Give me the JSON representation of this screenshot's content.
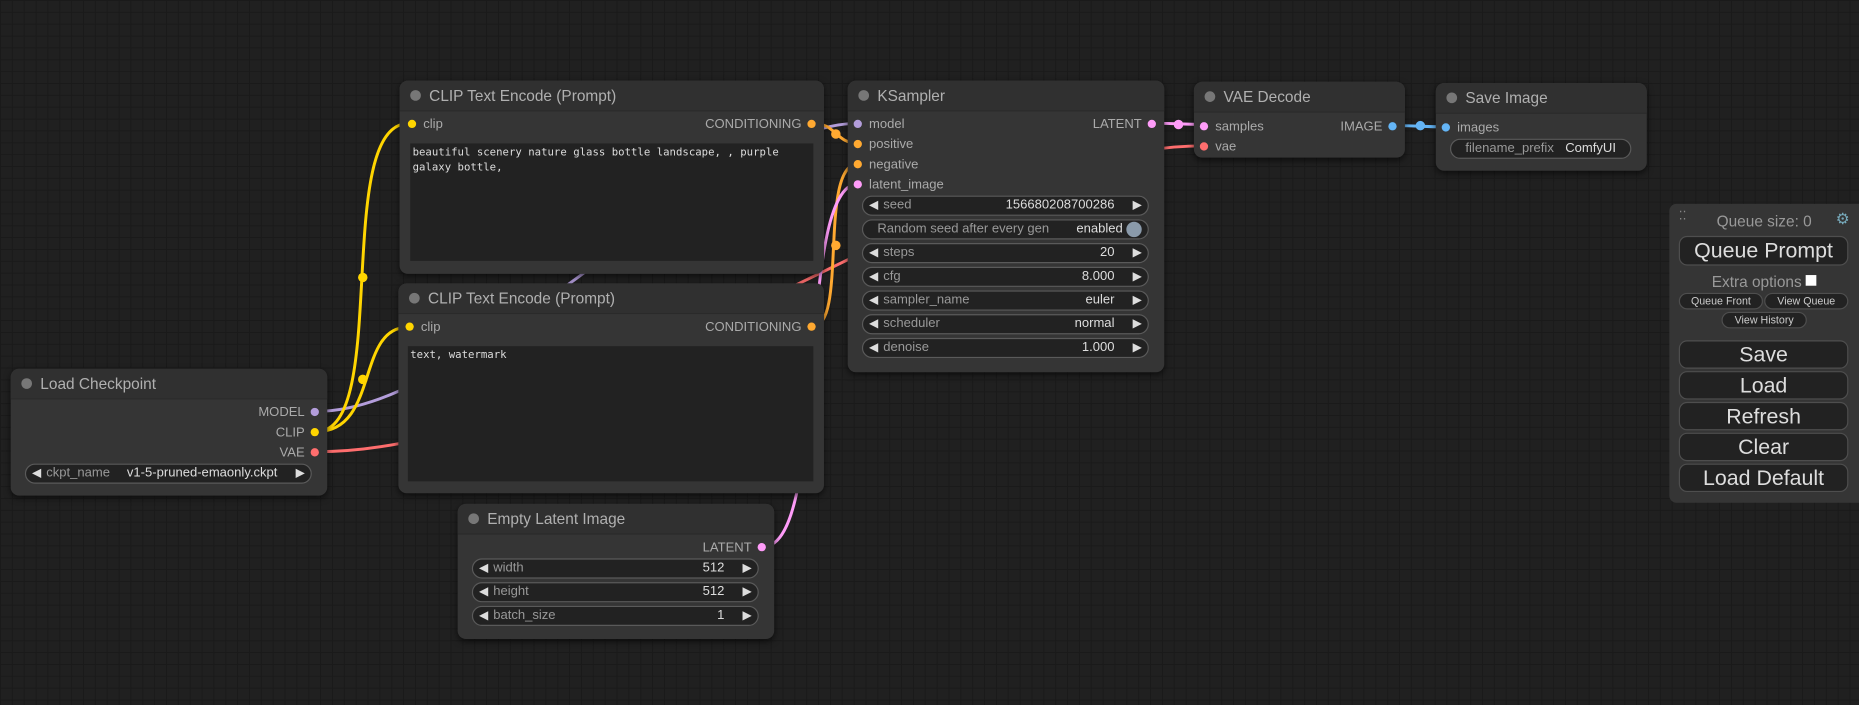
{
  "nodes": {
    "clip_pos": {
      "title": "CLIP Text Encode (Prompt)",
      "input": "clip",
      "output": "CONDITIONING",
      "text": "beautiful scenery nature glass bottle landscape, , purple galaxy bottle,"
    },
    "clip_neg": {
      "title": "CLIP Text Encode (Prompt)",
      "input": "clip",
      "output": "CONDITIONING",
      "text": "text, watermark"
    },
    "checkpoint": {
      "title": "Load Checkpoint",
      "outputs": [
        "MODEL",
        "CLIP",
        "VAE"
      ],
      "ckpt_label": "ckpt_name",
      "ckpt_value": "v1-5-pruned-emaonly.ckpt"
    },
    "latent": {
      "title": "Empty Latent Image",
      "output": "LATENT",
      "widgets": [
        {
          "label": "width",
          "value": "512"
        },
        {
          "label": "height",
          "value": "512"
        },
        {
          "label": "batch_size",
          "value": "1"
        }
      ]
    },
    "ksampler": {
      "title": "KSampler",
      "inputs": [
        "model",
        "positive",
        "negative",
        "latent_image"
      ],
      "output": "LATENT",
      "seed_label": "seed",
      "seed_value": "156680208700286",
      "toggle_label": "Random seed after every gen",
      "toggle_value": "enabled",
      "widgets": [
        {
          "label": "steps",
          "value": "20"
        },
        {
          "label": "cfg",
          "value": "8.000"
        },
        {
          "label": "sampler_name",
          "value": "euler"
        },
        {
          "label": "scheduler",
          "value": "normal"
        },
        {
          "label": "denoise",
          "value": "1.000"
        }
      ]
    },
    "vae_decode": {
      "title": "VAE Decode",
      "inputs": [
        "samples",
        "vae"
      ],
      "output": "IMAGE"
    },
    "save_image": {
      "title": "Save Image",
      "input": "images",
      "prefix_label": "filename_prefix",
      "prefix_value": "ComfyUI"
    }
  },
  "menu": {
    "queue_size": "Queue size: 0",
    "queue_prompt": "Queue Prompt",
    "extra_options": "Extra options",
    "queue_front": "Queue Front",
    "view_queue": "View Queue",
    "view_history": "View History",
    "save": "Save",
    "load": "Load",
    "refresh": "Refresh",
    "clear": "Clear",
    "load_default": "Load Default"
  },
  "colors": {
    "model": "#b39ddb",
    "clip": "#ffd500",
    "vae": "#ff6e6e",
    "conditioning": "#ffa931",
    "latent": "#ff9cf9",
    "image": "#64b5f6"
  }
}
